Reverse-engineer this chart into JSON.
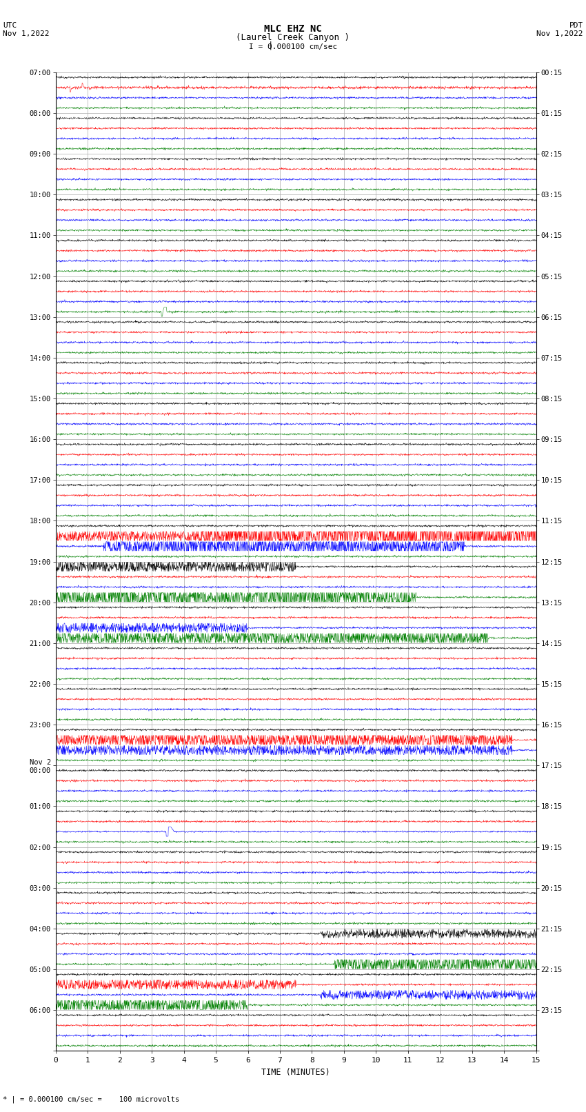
{
  "title_line1": "MLC EHZ NC",
  "title_line2": "(Laurel Creek Canyon )",
  "scale_label": "I = 0.000100 cm/sec",
  "left_label": "UTC\nNov 1,2022",
  "right_label": "PDT\nNov 1,2022",
  "bottom_label": "* | = 0.000100 cm/sec =    100 microvolts",
  "xlabel": "TIME (MINUTES)",
  "utc_times": [
    "07:00",
    "08:00",
    "09:00",
    "10:00",
    "11:00",
    "12:00",
    "13:00",
    "14:00",
    "15:00",
    "16:00",
    "17:00",
    "18:00",
    "19:00",
    "20:00",
    "21:00",
    "22:00",
    "23:00",
    "Nov 2\n00:00",
    "01:00",
    "02:00",
    "03:00",
    "04:00",
    "05:00",
    "06:00"
  ],
  "pdt_times": [
    "00:15",
    "01:15",
    "02:15",
    "03:15",
    "04:15",
    "05:15",
    "06:15",
    "07:15",
    "08:15",
    "09:15",
    "10:15",
    "11:15",
    "12:15",
    "13:15",
    "14:15",
    "15:15",
    "16:15",
    "17:15",
    "18:15",
    "19:15",
    "20:15",
    "21:15",
    "22:15",
    "23:15"
  ],
  "colors": [
    "black",
    "red",
    "blue",
    "green"
  ],
  "n_hours": 24,
  "n_minutes": 15,
  "background_color": "white",
  "grid_color": "#aaaaaa",
  "fig_width": 8.5,
  "fig_height": 16.13,
  "dpi": 100
}
